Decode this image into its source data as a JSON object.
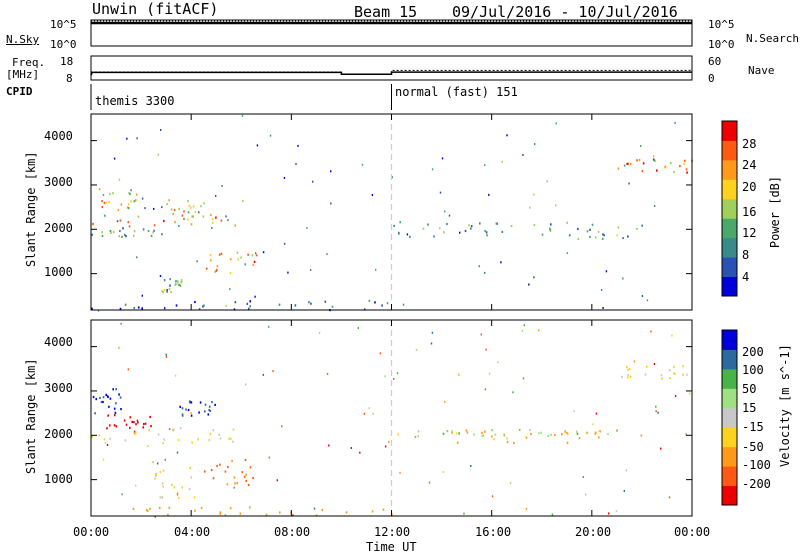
{
  "header": {
    "station": "Unwin (fitACF)",
    "beam": "Beam 15",
    "date_range": "09/Jul/2016 - 10/Jul/2016"
  },
  "left_labels": {
    "nsky": "N.Sky",
    "freq": "Freq.",
    "freq_unit": "[MHz]",
    "cpid": "CPID"
  },
  "right_labels": {
    "nsearch": "N.Search",
    "nave": "Nave"
  },
  "colors": {
    "power_scale": [
      "#0000dd",
      "#2a52b6",
      "#3a8a8a",
      "#4aa86a",
      "#9fd05a",
      "#ffd21f",
      "#ff9a1a",
      "#ff5a14",
      "#ee0000"
    ],
    "velocity_scale": [
      "#ee0000",
      "#ff5a14",
      "#ff9a1a",
      "#ffd21f",
      "#c8c8c8",
      "#9fe080",
      "#46b446",
      "#2a6aa0",
      "#0000dd"
    ],
    "gridline": "#cccccc"
  },
  "chart_data": [
    {
      "type": "line",
      "panel": "noise",
      "y_left_ticks": [
        "10^5",
        "10^0"
      ],
      "y_right_ticks": [
        "10^5",
        "10^0"
      ],
      "series": [
        {
          "name": "N.Sky",
          "x": [
            0,
            24
          ],
          "y": [
            100000,
            100000
          ]
        },
        {
          "name": "N.Search",
          "x": [
            0,
            24
          ],
          "y": [
            100000,
            100000
          ]
        }
      ]
    },
    {
      "type": "line",
      "panel": "frequency_nave",
      "ylabel": "Freq. [MHz]",
      "y_left_ticks": [
        "18",
        "8"
      ],
      "y_right_ticks": [
        "60",
        "0"
      ],
      "xlim": [
        0,
        24
      ],
      "series": [
        {
          "name": "Freq.",
          "x": [
            0,
            0.05,
            10,
            10,
            12,
            12,
            24
          ],
          "y": [
            10,
            11.2,
            11.2,
            10.4,
            10.4,
            11.3,
            11.3
          ]
        },
        {
          "name": "Nave",
          "x": [
            0,
            10,
            10,
            12,
            12,
            24
          ],
          "y": [
            20,
            20,
            14,
            14,
            24,
            24
          ]
        }
      ]
    },
    {
      "type": "table",
      "panel": "cpid",
      "ylabel": "CPID",
      "segments": [
        {
          "label": "themis 3300",
          "start": 0,
          "end": 12
        },
        {
          "label": "normal (fast) 151",
          "start": 12,
          "end": 24
        }
      ]
    },
    {
      "type": "heatmap",
      "panel": "power",
      "ylabel": "Slant Range [km]",
      "y_ticks": [
        1000,
        2000,
        3000,
        4000
      ],
      "ylim": [
        180,
        4600
      ],
      "xlim": [
        0,
        24
      ],
      "colorbar_label": "Power [dB]",
      "colorbar_ticks": [
        4,
        8,
        12,
        16,
        20,
        24,
        28
      ],
      "colorbar_range": [
        0,
        32
      ],
      "regions": [
        {
          "t0": 0.0,
          "t1": 1.8,
          "r0": 2400,
          "r1": 3000,
          "value": 20
        },
        {
          "t0": 0.0,
          "t1": 6.0,
          "r0": 2050,
          "r1": 2350,
          "value": 22
        },
        {
          "t0": 0.0,
          "t1": 3.5,
          "r0": 1850,
          "r1": 2050,
          "value": 10
        },
        {
          "t0": 2.5,
          "t1": 4.5,
          "r0": 2300,
          "r1": 2700,
          "value": 18
        },
        {
          "t0": 4.5,
          "t1": 6.6,
          "r0": 1000,
          "r1": 1550,
          "value": 22
        },
        {
          "t0": 2.8,
          "t1": 3.6,
          "r0": 600,
          "r1": 950,
          "value": 12
        },
        {
          "t0": 1.0,
          "t1": 12.0,
          "r0": 200,
          "r1": 420,
          "value": 6
        },
        {
          "t0": 12.0,
          "t1": 22.0,
          "r0": 1800,
          "r1": 2200,
          "value": 12
        },
        {
          "t0": 21.0,
          "t1": 24.0,
          "r0": 3300,
          "r1": 3600,
          "value": 22
        }
      ]
    },
    {
      "type": "heatmap",
      "panel": "velocity",
      "ylabel": "Slant Range [km]",
      "y_ticks": [
        1000,
        2000,
        3000,
        4000
      ],
      "ylim": [
        180,
        4600
      ],
      "xlim": [
        0,
        24
      ],
      "xlabel": "Time UT",
      "x_ticks": [
        "00:00",
        "04:00",
        "08:00",
        "12:00",
        "16:00",
        "20:00",
        "00:00"
      ],
      "colorbar_label": "Velocity [m s^-1]",
      "colorbar_ticks": [
        -200,
        -100,
        -50,
        -15,
        15,
        50,
        100,
        200
      ],
      "regions": [
        {
          "t0": 0.0,
          "t1": 1.2,
          "r0": 2500,
          "r1": 3100,
          "value": 200
        },
        {
          "t0": 0.5,
          "t1": 2.5,
          "r0": 2100,
          "r1": 2500,
          "value": -200
        },
        {
          "t0": 0.0,
          "t1": 6.0,
          "r0": 1750,
          "r1": 2200,
          "value": 0
        },
        {
          "t0": 3.5,
          "t1": 5.0,
          "r0": 2450,
          "r1": 2800,
          "value": 200
        },
        {
          "t0": 4.5,
          "t1": 6.5,
          "r0": 900,
          "r1": 1500,
          "value": -60
        },
        {
          "t0": 2.5,
          "t1": 4.2,
          "r0": 600,
          "r1": 1300,
          "value": 0
        },
        {
          "t0": 1.0,
          "t1": 12.0,
          "r0": 200,
          "r1": 400,
          "value": -30
        },
        {
          "t0": 12.0,
          "t1": 22.0,
          "r0": 1850,
          "r1": 2150,
          "value": -20
        },
        {
          "t0": 13.0,
          "t1": 21.0,
          "r0": 2000,
          "r1": 2150,
          "value": 40
        },
        {
          "t0": 21.0,
          "t1": 24.0,
          "r0": 3300,
          "r1": 3600,
          "value": 0
        }
      ]
    }
  ]
}
